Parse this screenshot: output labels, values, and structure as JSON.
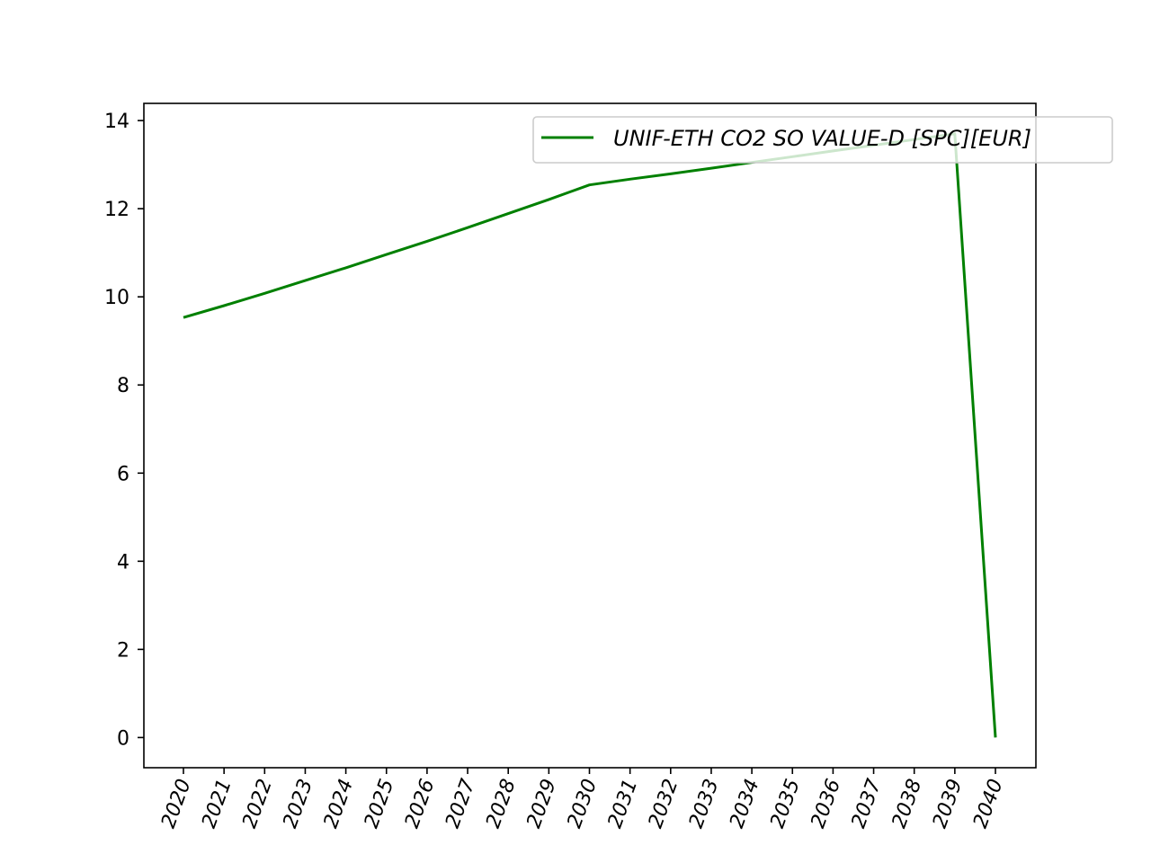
{
  "chart_data": {
    "type": "line",
    "title": "",
    "xlabel": "",
    "ylabel": "",
    "x": [
      "2020",
      "2021",
      "2022",
      "2023",
      "2024",
      "2025",
      "2026",
      "2027",
      "2028",
      "2029",
      "2030",
      "2031",
      "2032",
      "2033",
      "2034",
      "2035",
      "2036",
      "2037",
      "2038",
      "2039",
      "2040"
    ],
    "series": [
      {
        "name": "UNIF-ETH CO2 SO VALUE-D [SPC][EUR]",
        "color": "#008000",
        "values": [
          9.53,
          9.8,
          10.08,
          10.37,
          10.66,
          10.96,
          11.26,
          11.57,
          11.89,
          12.21,
          12.54,
          12.67,
          12.79,
          12.92,
          13.05,
          13.18,
          13.31,
          13.44,
          13.57,
          13.7,
          0.0
        ]
      }
    ],
    "yticks": [
      0,
      2,
      4,
      6,
      8,
      10,
      12,
      14
    ],
    "ylim": [
      -0.685,
      14.39
    ],
    "grid": false,
    "legend_position": "upper-right"
  }
}
